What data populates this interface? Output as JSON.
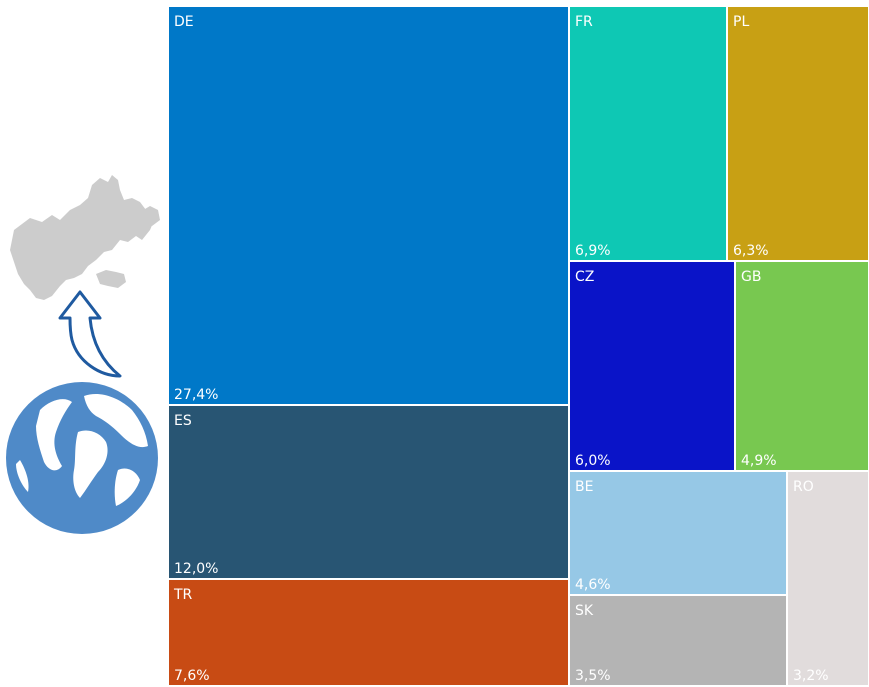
{
  "chart_data": {
    "type": "treemap",
    "items": [
      {
        "label": "DE",
        "value": "27,4%",
        "pct": 27.4,
        "color": "#0078C8"
      },
      {
        "label": "ES",
        "value": "12,0%",
        "pct": 12.0,
        "color": "#285573"
      },
      {
        "label": "TR",
        "value": "7,6%",
        "pct": 7.6,
        "color": "#C84B14"
      },
      {
        "label": "FR",
        "value": "6,9%",
        "pct": 6.9,
        "color": "#0EC8B4"
      },
      {
        "label": "PL",
        "value": "6,3%",
        "pct": 6.3,
        "color": "#C8A014"
      },
      {
        "label": "CZ",
        "value": "6,0%",
        "pct": 6.0,
        "color": "#0A14C8"
      },
      {
        "label": "GB",
        "value": "4,9%",
        "pct": 4.9,
        "color": "#78C850"
      },
      {
        "label": "BE",
        "value": "4,6%",
        "pct": 4.6,
        "color": "#96C8E6"
      },
      {
        "label": "SK",
        "value": "3,5%",
        "pct": 3.5,
        "color": "#B4B4B4"
      },
      {
        "label": "RO",
        "value": "3,2%",
        "pct": 3.2,
        "color": "#E1DCDC"
      }
    ]
  },
  "icons": {
    "europe_map": "europe-map-icon",
    "arrow": "curved-arrow-up-icon",
    "globe": "globe-icon"
  },
  "colors": {
    "map_fill": "#CCCCCC",
    "arrow_stroke": "#1F5AA0",
    "globe_blue": "#4F8AC8",
    "globe_land": "#FFFFFF"
  }
}
